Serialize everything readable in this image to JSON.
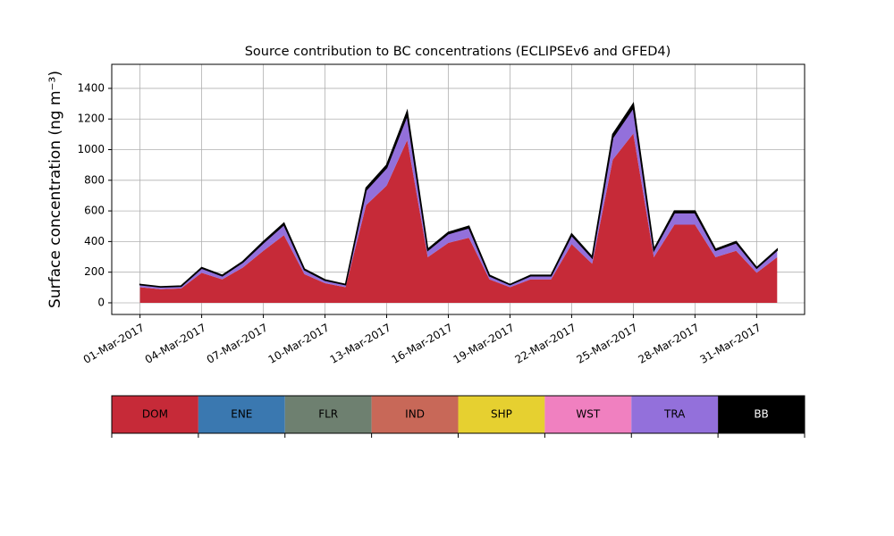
{
  "chart_data": {
    "type": "stacked_area",
    "title": "Source contribution to BC concentrations (ECLIPSEv6 and GFED4)",
    "y_label": "Surface concentration (ng m⁻³)",
    "x": [
      "2017-03-01",
      "2017-03-02",
      "2017-03-03",
      "2017-03-04",
      "2017-03-05",
      "2017-03-06",
      "2017-03-07",
      "2017-03-08",
      "2017-03-09",
      "2017-03-10",
      "2017-03-11",
      "2017-03-12",
      "2017-03-13",
      "2017-03-14",
      "2017-03-15",
      "2017-03-16",
      "2017-03-17",
      "2017-03-18",
      "2017-03-19",
      "2017-03-20",
      "2017-03-21",
      "2017-03-22",
      "2017-03-23",
      "2017-03-24",
      "2017-03-25",
      "2017-03-26",
      "2017-03-27",
      "2017-03-28",
      "2017-03-29",
      "2017-03-30",
      "2017-03-31",
      "2017-04-01"
    ],
    "series": [
      {
        "name": "DOM",
        "color": "#c62a38",
        "values": [
          102,
          89,
          94,
          196,
          153,
          230,
          340,
          442,
          187,
          128,
          102,
          638,
          765,
          1063,
          298,
          391,
          425,
          153,
          102,
          153,
          153,
          383,
          255,
          935,
          1105,
          298,
          510,
          510,
          298,
          340,
          196,
          298
        ]
      },
      {
        "name": "ENE",
        "color": "#3a78b0",
        "values": [
          0,
          0,
          0,
          0,
          0,
          0,
          0,
          0,
          0,
          0,
          0,
          0,
          0,
          0,
          0,
          0,
          0,
          0,
          0,
          0,
          0,
          0,
          0,
          0,
          0,
          0,
          0,
          0,
          0,
          0,
          0,
          0
        ]
      },
      {
        "name": "FLR",
        "color": "#6e8070",
        "values": [
          0,
          0,
          0,
          0,
          0,
          0,
          0,
          0,
          0,
          0,
          0,
          0,
          0,
          0,
          0,
          0,
          0,
          0,
          0,
          0,
          0,
          0,
          0,
          0,
          0,
          0,
          0,
          0,
          0,
          0,
          0,
          0
        ]
      },
      {
        "name": "IND",
        "color": "#c86858",
        "values": [
          0,
          0,
          0,
          0,
          0,
          0,
          0,
          0,
          0,
          0,
          0,
          0,
          0,
          0,
          0,
          0,
          0,
          0,
          0,
          0,
          0,
          0,
          0,
          0,
          0,
          0,
          0,
          0,
          0,
          0,
          0,
          0
        ]
      },
      {
        "name": "SHP",
        "color": "#e6d030",
        "values": [
          0,
          0,
          0,
          0,
          0,
          0,
          0,
          0,
          0,
          0,
          0,
          0,
          0,
          0,
          0,
          0,
          0,
          0,
          0,
          0,
          0,
          0,
          0,
          0,
          0,
          0,
          0,
          0,
          0,
          0,
          0,
          0
        ]
      },
      {
        "name": "WST",
        "color": "#f080c0",
        "values": [
          0,
          0,
          0,
          0,
          0,
          0,
          0,
          0,
          0,
          0,
          0,
          0,
          0,
          0,
          0,
          0,
          0,
          0,
          0,
          0,
          0,
          0,
          0,
          0,
          0,
          0,
          0,
          0,
          0,
          0,
          0,
          0
        ]
      },
      {
        "name": "TRA",
        "color": "#9370db",
        "values": [
          16,
          14,
          14,
          30,
          23,
          35,
          52,
          68,
          29,
          19,
          16,
          97,
          117,
          162,
          45,
          60,
          65,
          23,
          16,
          23,
          23,
          58,
          39,
          143,
          169,
          45,
          78,
          78,
          45,
          52,
          30,
          45
        ]
      },
      {
        "name": "BB",
        "color": "#000000",
        "values": [
          2,
          2,
          2,
          4,
          4,
          5,
          8,
          10,
          4,
          3,
          2,
          15,
          18,
          25,
          7,
          9,
          10,
          4,
          2,
          4,
          4,
          9,
          6,
          22,
          26,
          7,
          12,
          12,
          7,
          8,
          4,
          7
        ]
      }
    ],
    "xlim": [
      "2017-02-27T15:00",
      "2017-04-02T08:00"
    ],
    "xticks": [
      {
        "value": "2017-03-01",
        "label": "01-Mar-2017"
      },
      {
        "value": "2017-03-04",
        "label": "04-Mar-2017"
      },
      {
        "value": "2017-03-07",
        "label": "07-Mar-2017"
      },
      {
        "value": "2017-03-10",
        "label": "10-Mar-2017"
      },
      {
        "value": "2017-03-13",
        "label": "13-Mar-2017"
      },
      {
        "value": "2017-03-16",
        "label": "16-Mar-2017"
      },
      {
        "value": "2017-03-19",
        "label": "19-Mar-2017"
      },
      {
        "value": "2017-03-22",
        "label": "22-Mar-2017"
      },
      {
        "value": "2017-03-25",
        "label": "25-Mar-2017"
      },
      {
        "value": "2017-03-28",
        "label": "28-Mar-2017"
      },
      {
        "value": "2017-03-31",
        "label": "31-Mar-2017"
      }
    ],
    "ylim": [
      -76,
      1557
    ],
    "yticks": [
      0,
      200,
      400,
      600,
      800,
      1000,
      1200,
      1400
    ],
    "grid": true
  }
}
